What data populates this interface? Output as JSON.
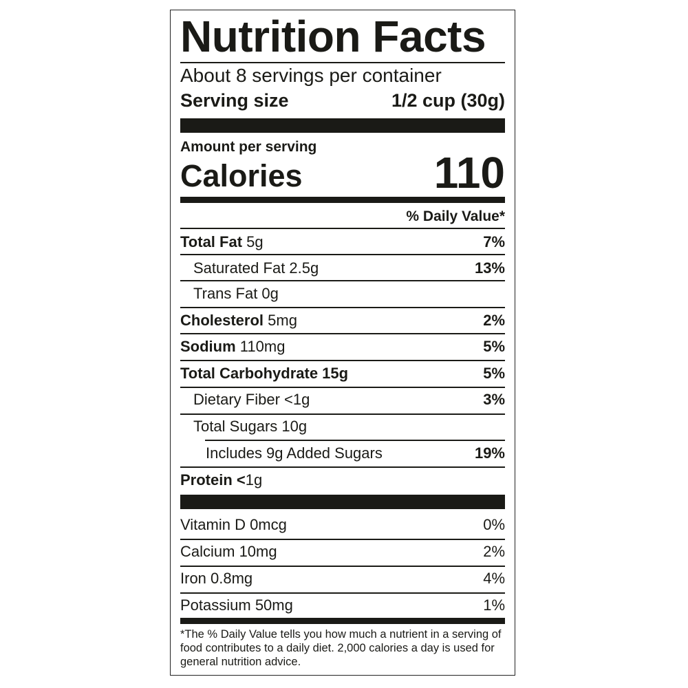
{
  "title": "Nutrition Facts",
  "servings_per_container": "About 8 servings per container",
  "serving_size_label": "Serving size",
  "serving_size_value": "1/2 cup (30g)",
  "amount_per_serving": "Amount per serving",
  "calories_label": "Calories",
  "calories_value": "110",
  "daily_value_header": "% Daily Value*",
  "nutrients": [
    {
      "name": "Total Fat",
      "amount": "5g",
      "dv": "7%"
    },
    {
      "name": "Saturated Fat 2.5g",
      "amount": "",
      "dv": "13%"
    },
    {
      "name": "Trans Fat 0g",
      "amount": "",
      "dv": ""
    },
    {
      "name": "Cholesterol",
      "amount": "5mg",
      "dv": "2%"
    },
    {
      "name": "Sodium",
      "amount": "110mg",
      "dv": "5%"
    },
    {
      "name": "Total Carbohydrate 15g",
      "amount": "",
      "dv": "5%"
    },
    {
      "name": "Dietary Fiber <1g",
      "amount": "",
      "dv": "3%"
    },
    {
      "name": "Total Sugars 10g",
      "amount": "",
      "dv": ""
    },
    {
      "name": "Includes 9g Added Sugars",
      "amount": "",
      "dv": "19%"
    },
    {
      "name": "Protein <",
      "amount": "1g",
      "dv": ""
    }
  ],
  "vitamins": [
    {
      "name": "Vitamin D 0mcg",
      "dv": "0%"
    },
    {
      "name": "Calcium 10mg",
      "dv": "2%"
    },
    {
      "name": "Iron 0.8mg",
      "dv": "4%"
    },
    {
      "name": "Potassium 50mg",
      "dv": "1%"
    }
  ],
  "footnote": "*The % Daily Value tells you how much a nutrient in a serving of food contributes to a daily diet. 2,000 calories a day is used for general nutrition advice."
}
